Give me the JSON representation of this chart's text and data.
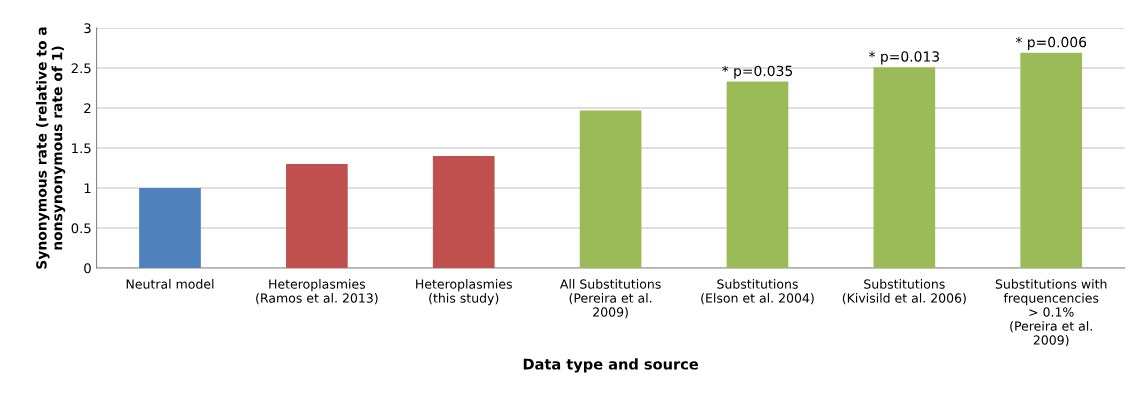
{
  "chart_data": {
    "type": "bar",
    "xlabel": "Data type and source",
    "ylabel": "Synonymous rate (relative to a\nnonsynonymous rate of 1)",
    "categories": [
      "Neutral model",
      "Heteroplasmies\n(Ramos et al. 2013)",
      "Heteroplasmies\n(this study)",
      "All Substitutions\n(Pereira et al.\n2009)",
      "Substitutions\n(Elson et al. 2004)",
      "Substitutions\n(Kivisild et al. 2006)",
      "Substitutions with\nfrequencencies\n> 0.1%\n(Pereira et al.\n2009)"
    ],
    "values": [
      1.0,
      1.3,
      1.4,
      1.97,
      2.33,
      2.51,
      2.69
    ],
    "colors": [
      "#4f81bd",
      "#c0504d",
      "#c0504d",
      "#9bbb59",
      "#9bbb59",
      "#9bbb59",
      "#9bbb59"
    ],
    "ylim": [
      0,
      3
    ],
    "yticks": [
      0,
      0.5,
      1,
      1.5,
      2,
      2.5,
      3
    ],
    "grid": "y",
    "legend": false,
    "annotations": [
      {
        "text": "* p=0.035",
        "x": "Substitutions\n(Elson et al. 2004)",
        "y": 2.33
      },
      {
        "text": "* p=0.013",
        "x": "Substitutions\n(Kivisild et al. 2006)",
        "y": 2.51
      },
      {
        "text": "* p=0.006",
        "x": "Substitutions with\nfrequencencies\n> 0.1%\n(Pereira et al.\n2009)",
        "y": 2.69
      }
    ]
  }
}
